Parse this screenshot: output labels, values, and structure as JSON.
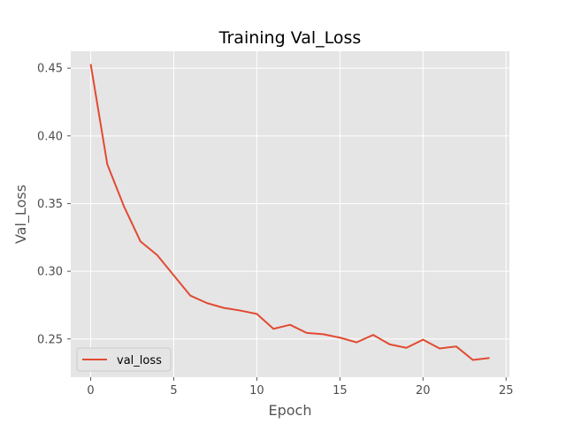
{
  "chart_data": {
    "type": "line",
    "title": "Training Val_Loss",
    "xlabel": "Epoch",
    "ylabel": "Val_Loss",
    "xlim": [
      -1.2,
      25.2
    ],
    "ylim": [
      0.2218,
      0.4625
    ],
    "xticks": [
      0,
      5,
      10,
      15,
      20,
      25
    ],
    "yticks": [
      0.25,
      0.3,
      0.35,
      0.4,
      0.45
    ],
    "xtick_labels": [
      "0",
      "5",
      "10",
      "15",
      "20",
      "25"
    ],
    "ytick_labels": [
      "0.25",
      "0.30",
      "0.35",
      "0.40",
      "0.45"
    ],
    "grid": true,
    "legend_position": "lower-left",
    "series": [
      {
        "name": "val_loss",
        "color": "#E24A33",
        "x": [
          0,
          1,
          2,
          3,
          4,
          5,
          6,
          7,
          8,
          9,
          10,
          11,
          12,
          13,
          14,
          15,
          16,
          17,
          18,
          19,
          20,
          21,
          22,
          23,
          24
        ],
        "values": [
          0.453,
          0.379,
          0.348,
          0.322,
          0.312,
          0.297,
          0.282,
          0.2765,
          0.273,
          0.271,
          0.2685,
          0.2575,
          0.2605,
          0.2545,
          0.2535,
          0.251,
          0.2475,
          0.253,
          0.246,
          0.2435,
          0.2495,
          0.243,
          0.2445,
          0.2345,
          0.236
        ]
      }
    ]
  },
  "colors": {
    "plot_bg": "#E5E5E5",
    "grid": "#FFFFFF",
    "line": "#E24A33"
  }
}
